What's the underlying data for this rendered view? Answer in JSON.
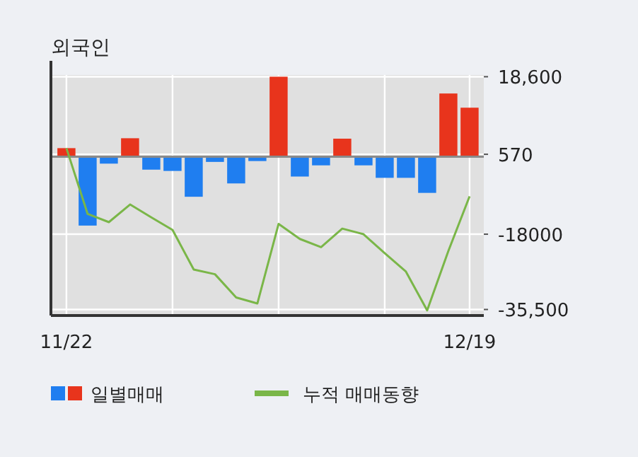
{
  "chart_data": {
    "type": "bar",
    "title": "외국인",
    "categories": [
      "11/22",
      null,
      null,
      null,
      null,
      null,
      null,
      null,
      null,
      null,
      null,
      null,
      null,
      null,
      null,
      null,
      null,
      null,
      null,
      "12/19"
    ],
    "series": [
      {
        "name": "일별매매",
        "colors": [
          "#e8341c",
          "#1f7ef0",
          "#1f7ef0",
          "#e8341c",
          "#1f7ef0",
          "#1f7ef0",
          "#1f7ef0",
          "#1f7ef0",
          "#1f7ef0",
          "#1f7ef0",
          "#e8341c",
          "#1f7ef0",
          "#1f7ef0",
          "#e8341c",
          "#1f7ef0",
          "#1f7ef0",
          "#1f7ef0",
          "#1f7ef0",
          "#e8341c",
          "#e8341c"
        ],
        "values": [
          2000,
          -16000,
          -1600,
          4300,
          -3000,
          -3300,
          -9300,
          -1200,
          -6200,
          -1000,
          18600,
          -4600,
          -2000,
          4200,
          -2000,
          -4900,
          -4900,
          -8400,
          14700,
          11400
        ]
      },
      {
        "name": "누적 매매동향",
        "type": "line",
        "color": "#7ab648",
        "values": [
          2000,
          -13300,
          -15200,
          -11100,
          -14100,
          -17000,
          -26200,
          -27300,
          -32700,
          -34100,
          -15600,
          -19100,
          -21000,
          -16700,
          -18000,
          -22400,
          -26700,
          -35700,
          -21900,
          -9200
        ]
      }
    ],
    "ylim": [
      -36900,
      19000
    ],
    "yticks": [
      {
        "value": 18600,
        "label": "18,600"
      },
      570,
      -18000,
      {
        "value": -35500,
        "label": "-35,500"
      }
    ],
    "grid": true,
    "legend": "bottom"
  }
}
